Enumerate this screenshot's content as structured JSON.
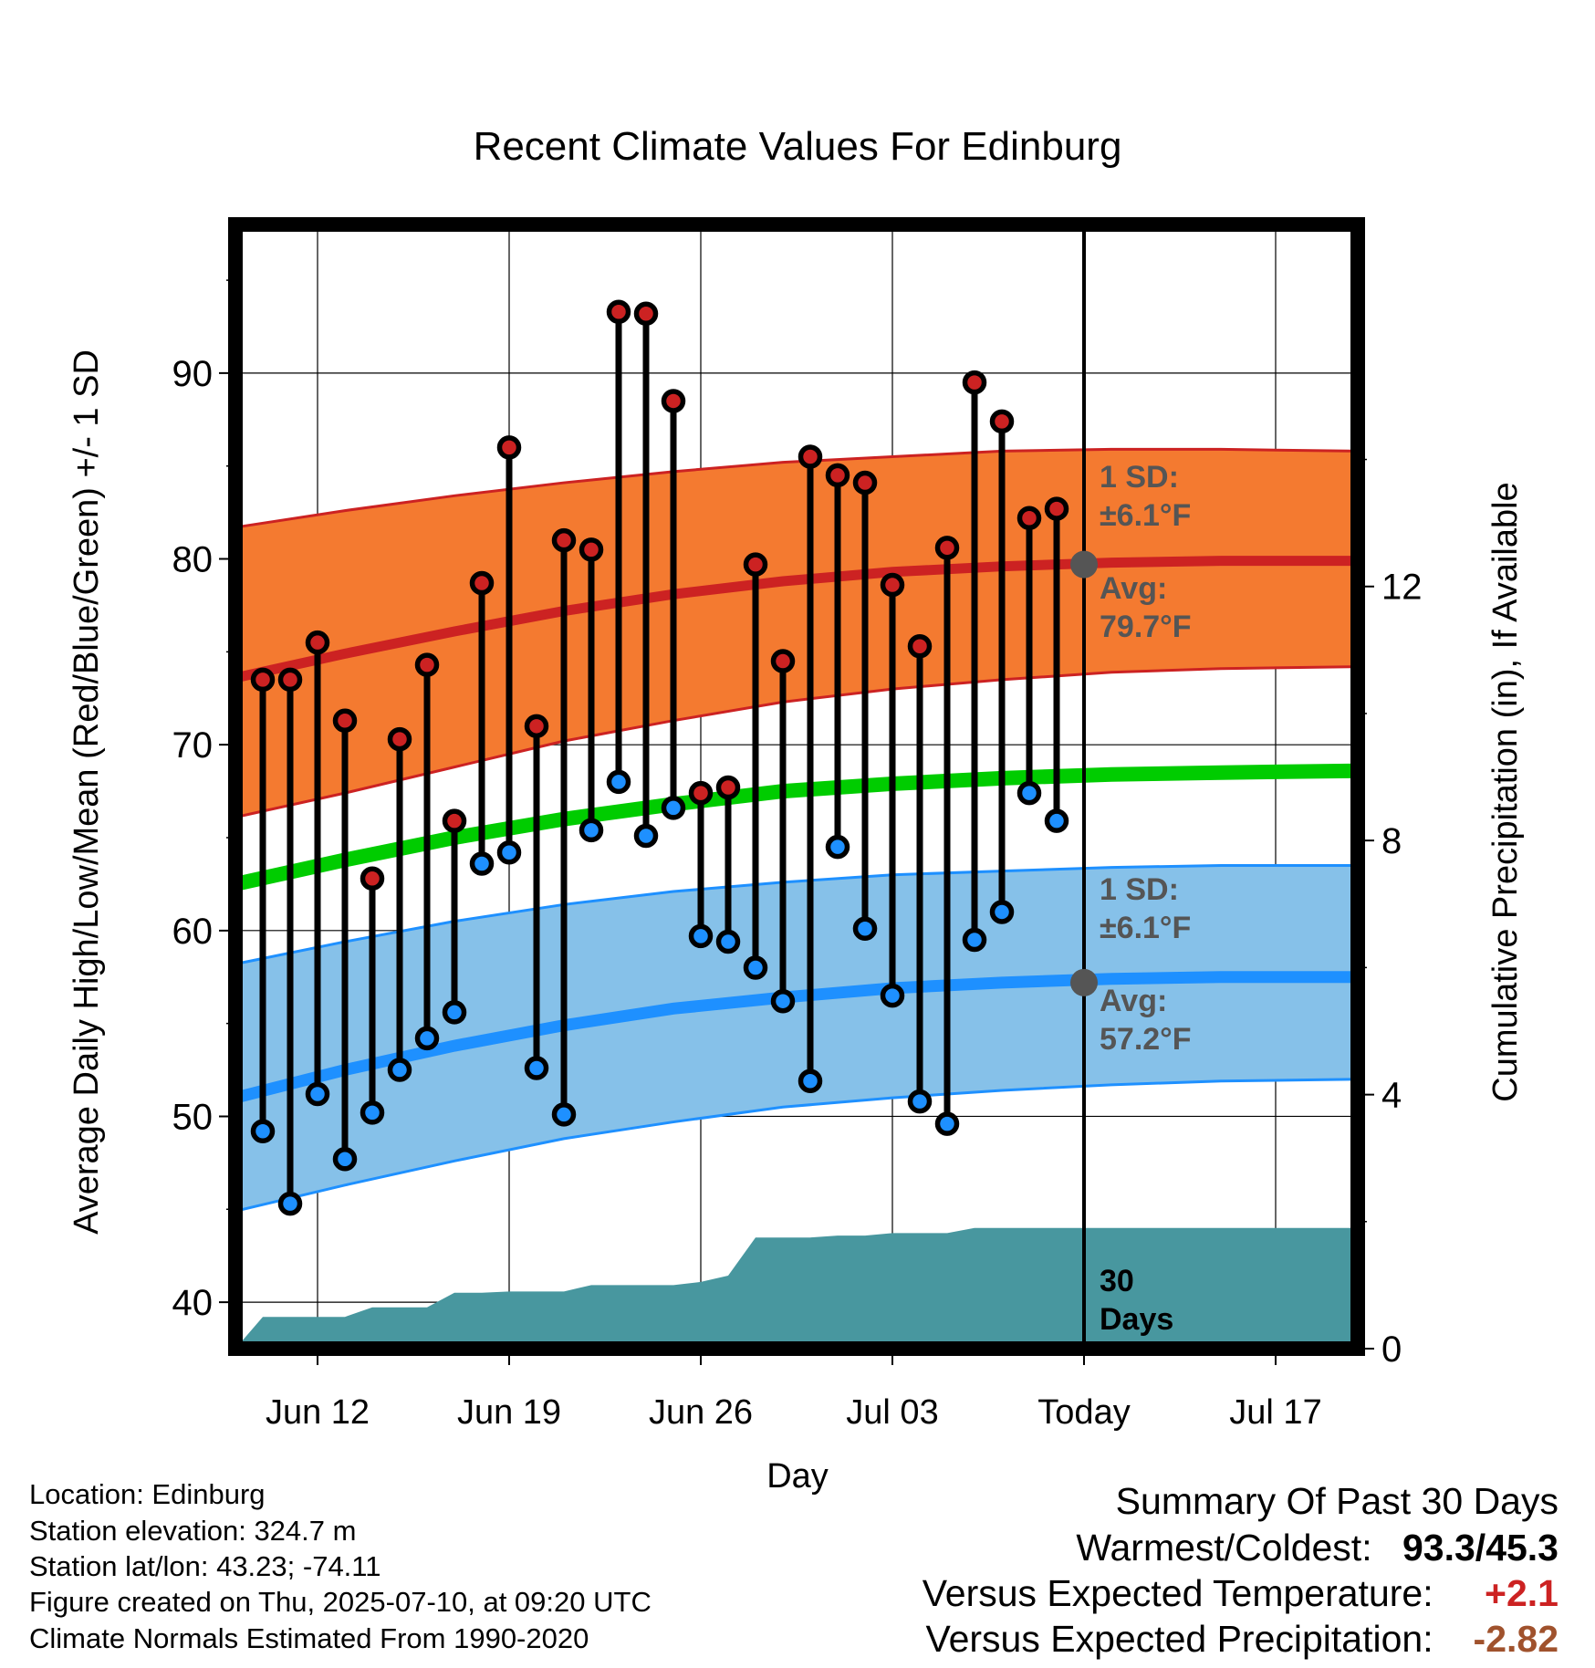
{
  "chart_data": {
    "type": "line",
    "title": "Recent Climate Values For Edinburg",
    "xlabel": "Day",
    "ylabel": "Average Daily High/Low/Mean (Red/Blue/Green) +/- 1 SD",
    "y2label": "Cumulative Precipitation (in), If Available",
    "ylim": [
      37.5,
      98
    ],
    "y2lim": [
      0,
      17.7
    ],
    "yticks": [
      40,
      50,
      60,
      70,
      80,
      90
    ],
    "y2ticks": [
      0,
      4,
      8,
      12
    ],
    "x_start_date": "2025-06-09",
    "x_end_date": "2025-07-20",
    "x_tick_labels": [
      "Jun 12",
      "Jun 19",
      "Jun 26",
      "Jul 03",
      "Today",
      "Jul 17"
    ],
    "x_tick_dates": [
      "2025-06-12",
      "2025-06-19",
      "2025-06-26",
      "2025-07-03",
      "2025-07-10",
      "2025-07-17"
    ],
    "today_date": "2025-07-10",
    "grid": true,
    "colors": {
      "high_band": "#f47a30",
      "high_line": "#cc2222",
      "low_band": "#86c1e9",
      "low_line": "#1e90ff",
      "mean_line": "#00cc00",
      "precip": "#48979f",
      "high_marker": "#cc2222",
      "low_marker": "#1e90ff",
      "avg_marker": "#555555",
      "annotation": "#555555"
    },
    "normals": {
      "dates": [
        "2025-06-09",
        "2025-06-13",
        "2025-06-17",
        "2025-06-21",
        "2025-06-25",
        "2025-06-29",
        "2025-07-03",
        "2025-07-07",
        "2025-07-11",
        "2025-07-15",
        "2025-07-20"
      ],
      "high_avg": [
        73.6,
        74.9,
        76.1,
        77.2,
        78.1,
        78.8,
        79.3,
        79.6,
        79.8,
        79.9,
        79.9
      ],
      "high_sd_upper": [
        81.7,
        82.6,
        83.4,
        84.1,
        84.7,
        85.2,
        85.5,
        85.8,
        85.9,
        85.9,
        85.8
      ],
      "high_sd_lower": [
        66.1,
        67.4,
        68.8,
        70.2,
        71.3,
        72.3,
        73.0,
        73.5,
        73.9,
        74.1,
        74.2
      ],
      "mean": [
        62.5,
        63.8,
        65.0,
        66.0,
        66.8,
        67.5,
        67.9,
        68.2,
        68.4,
        68.5,
        68.6
      ],
      "low_avg": [
        51.0,
        52.5,
        53.8,
        54.9,
        55.8,
        56.4,
        56.9,
        57.2,
        57.4,
        57.5,
        57.5
      ],
      "low_sd_upper": [
        58.2,
        59.4,
        60.5,
        61.4,
        62.1,
        62.6,
        63.0,
        63.2,
        63.4,
        63.5,
        63.5
      ],
      "low_sd_lower": [
        44.9,
        46.3,
        47.6,
        48.8,
        49.7,
        50.5,
        51.0,
        51.4,
        51.7,
        51.9,
        52.0
      ]
    },
    "observed": {
      "dates": [
        "2025-06-10",
        "2025-06-11",
        "2025-06-12",
        "2025-06-13",
        "2025-06-14",
        "2025-06-15",
        "2025-06-16",
        "2025-06-17",
        "2025-06-18",
        "2025-06-19",
        "2025-06-20",
        "2025-06-21",
        "2025-06-22",
        "2025-06-23",
        "2025-06-24",
        "2025-06-25",
        "2025-06-26",
        "2025-06-27",
        "2025-06-28",
        "2025-06-29",
        "2025-06-30",
        "2025-07-01",
        "2025-07-02",
        "2025-07-03",
        "2025-07-04",
        "2025-07-05",
        "2025-07-06",
        "2025-07-07",
        "2025-07-08",
        "2025-07-09"
      ],
      "high": [
        73.5,
        73.5,
        75.5,
        71.3,
        62.8,
        70.3,
        74.3,
        65.9,
        78.7,
        86.0,
        71.0,
        81.0,
        80.5,
        93.3,
        93.2,
        88.5,
        67.4,
        67.7,
        79.7,
        74.5,
        85.5,
        84.5,
        84.1,
        78.6,
        75.3,
        80.6,
        89.5,
        87.4,
        82.2,
        82.7
      ],
      "low": [
        49.2,
        45.3,
        51.2,
        47.7,
        50.2,
        52.5,
        54.2,
        55.6,
        63.6,
        64.2,
        52.6,
        50.1,
        65.4,
        68.0,
        65.1,
        66.6,
        59.7,
        59.4,
        58.0,
        56.2,
        51.9,
        64.5,
        60.1,
        56.5,
        50.8,
        49.6,
        59.5,
        61.0,
        67.4,
        65.9
      ]
    },
    "precipitation": {
      "dates": [
        "2025-06-09",
        "2025-06-09",
        "2025-06-10",
        "2025-06-11",
        "2025-06-12",
        "2025-06-13",
        "2025-06-14",
        "2025-06-15",
        "2025-06-16",
        "2025-06-17",
        "2025-06-18",
        "2025-06-19",
        "2025-06-20",
        "2025-06-21",
        "2025-06-22",
        "2025-06-23",
        "2025-06-24",
        "2025-06-25",
        "2025-06-26",
        "2025-06-27",
        "2025-06-28",
        "2025-06-29",
        "2025-06-30",
        "2025-07-01",
        "2025-07-02",
        "2025-07-03",
        "2025-07-04",
        "2025-07-05",
        "2025-07-06",
        "2025-07-07",
        "2025-07-08",
        "2025-07-09",
        "2025-07-20"
      ],
      "cumulative_in": [
        0.0,
        0.0,
        0.5,
        0.5,
        0.5,
        0.5,
        0.65,
        0.65,
        0.65,
        0.88,
        0.88,
        0.9,
        0.9,
        0.9,
        1.0,
        1.0,
        1.0,
        1.0,
        1.05,
        1.15,
        1.75,
        1.75,
        1.75,
        1.78,
        1.78,
        1.82,
        1.82,
        1.82,
        1.9,
        1.9,
        1.9,
        1.9,
        1.9
      ]
    },
    "annotations": {
      "high_sd_label": "1 SD:",
      "high_sd_value": "±6.1°F",
      "high_avg_label": "Avg:",
      "high_avg_value": "79.7°F",
      "high_avg_today": 79.7,
      "low_sd_label": "1 SD:",
      "low_sd_value": "±6.1°F",
      "low_avg_label": "Avg:",
      "low_avg_value": "57.2°F",
      "low_avg_today": 57.2,
      "days_line1": "30",
      "days_line2": "Days"
    }
  },
  "info": {
    "location": "Location: Edinburg",
    "elevation": "Station elevation: 324.7 m",
    "latlon": "Station lat/lon: 43.23; -74.11",
    "created": "Figure created on Thu, 2025-07-10, at 09:20 UTC",
    "normals": "Climate Normals Estimated From 1990-2020"
  },
  "summary": {
    "title": "Summary Of Past 30 Days",
    "warm_cold_label": "Warmest/Coldest:",
    "warm_cold_value": "93.3/45.3",
    "temp_label": "Versus Expected Temperature:",
    "temp_value": "+2.1",
    "temp_color": "#cc2222",
    "precip_label": "Versus Expected Precipitation:",
    "precip_value": "-2.82",
    "precip_color": "#a0522d"
  }
}
